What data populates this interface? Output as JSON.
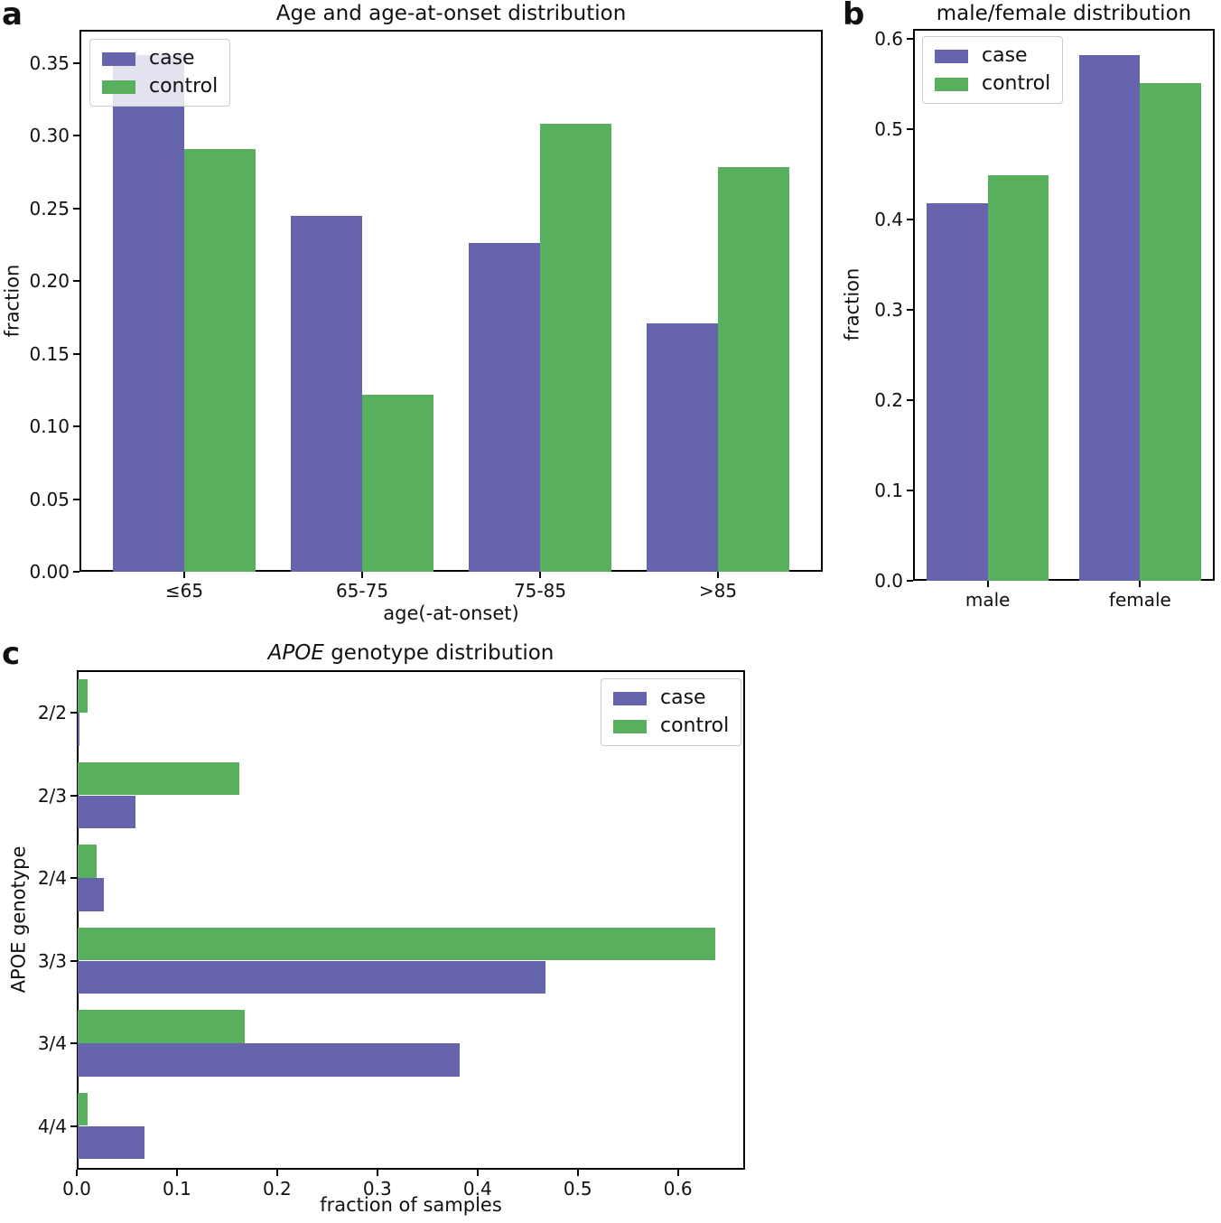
{
  "figure": {
    "background": "#ffffff",
    "panel_labels": {
      "a": "a",
      "b": "b",
      "c": "c"
    }
  },
  "colors": {
    "case": "#6664ac",
    "control": "#58af5d",
    "axis": "#000000",
    "text": "#111111",
    "legend_border": "#cccccc"
  },
  "chart_data": [
    {
      "id": "age",
      "panel": "a",
      "type": "bar",
      "title": "Age and age-at-onset distribution",
      "xlabel": "age(-at-onset)",
      "ylabel": "fraction",
      "categories": [
        "≤65",
        "65-75",
        "75-85",
        ">85"
      ],
      "series": [
        {
          "name": "case",
          "color_key": "case",
          "values": [
            0.355,
            0.245,
            0.226,
            0.171
          ]
        },
        {
          "name": "control",
          "color_key": "control",
          "values": [
            0.291,
            0.122,
            0.308,
            0.278
          ]
        }
      ],
      "ylim": [
        0,
        0.3727
      ],
      "yticks": [
        {
          "v": 0.0,
          "label": "0.00"
        },
        {
          "v": 0.05,
          "label": "0.05"
        },
        {
          "v": 0.1,
          "label": "0.10"
        },
        {
          "v": 0.15,
          "label": "0.15"
        },
        {
          "v": 0.2,
          "label": "0.20"
        },
        {
          "v": 0.25,
          "label": "0.25"
        },
        {
          "v": 0.3,
          "label": "0.30"
        },
        {
          "v": 0.35,
          "label": "0.35"
        }
      ],
      "legend_position": "upper-left",
      "grid": false
    },
    {
      "id": "sex",
      "panel": "b",
      "type": "bar",
      "title": "male/female distribution",
      "xlabel": "",
      "ylabel": "fraction",
      "categories": [
        "male",
        "female"
      ],
      "series": [
        {
          "name": "case",
          "color_key": "case",
          "values": [
            0.418,
            0.582
          ]
        },
        {
          "name": "control",
          "color_key": "control",
          "values": [
            0.449,
            0.551
          ]
        }
      ],
      "ylim": [
        0,
        0.611
      ],
      "yticks": [
        {
          "v": 0.0,
          "label": "0.0"
        },
        {
          "v": 0.1,
          "label": "0.1"
        },
        {
          "v": 0.2,
          "label": "0.2"
        },
        {
          "v": 0.3,
          "label": "0.3"
        },
        {
          "v": 0.4,
          "label": "0.4"
        },
        {
          "v": 0.5,
          "label": "0.5"
        },
        {
          "v": 0.6,
          "label": "0.6"
        }
      ],
      "legend_position": "upper-left",
      "grid": false
    },
    {
      "id": "apoe",
      "panel": "c",
      "type": "barh",
      "title_parts": [
        {
          "text": "APOE",
          "italic": true
        },
        {
          "text": " genotype distribution",
          "italic": false
        }
      ],
      "xlabel": "fraction of samples",
      "ylabel": "APOE genotype",
      "categories": [
        "2/2",
        "2/3",
        "2/4",
        "3/3",
        "3/4",
        "4/4"
      ],
      "series": [
        {
          "name": "case",
          "color_key": "case",
          "values": [
            0.002,
            0.058,
            0.026,
            0.467,
            0.381,
            0.067
          ]
        },
        {
          "name": "control",
          "color_key": "control",
          "values": [
            0.01,
            0.161,
            0.019,
            0.636,
            0.167,
            0.01
          ]
        }
      ],
      "xlim": [
        0,
        0.667
      ],
      "xticks": [
        {
          "v": 0.0,
          "label": "0.0"
        },
        {
          "v": 0.1,
          "label": "0.1"
        },
        {
          "v": 0.2,
          "label": "0.2"
        },
        {
          "v": 0.3,
          "label": "0.3"
        },
        {
          "v": 0.4,
          "label": "0.4"
        },
        {
          "v": 0.5,
          "label": "0.5"
        },
        {
          "v": 0.6,
          "label": "0.6"
        }
      ],
      "legend_position": "upper-right",
      "grid": false
    }
  ]
}
